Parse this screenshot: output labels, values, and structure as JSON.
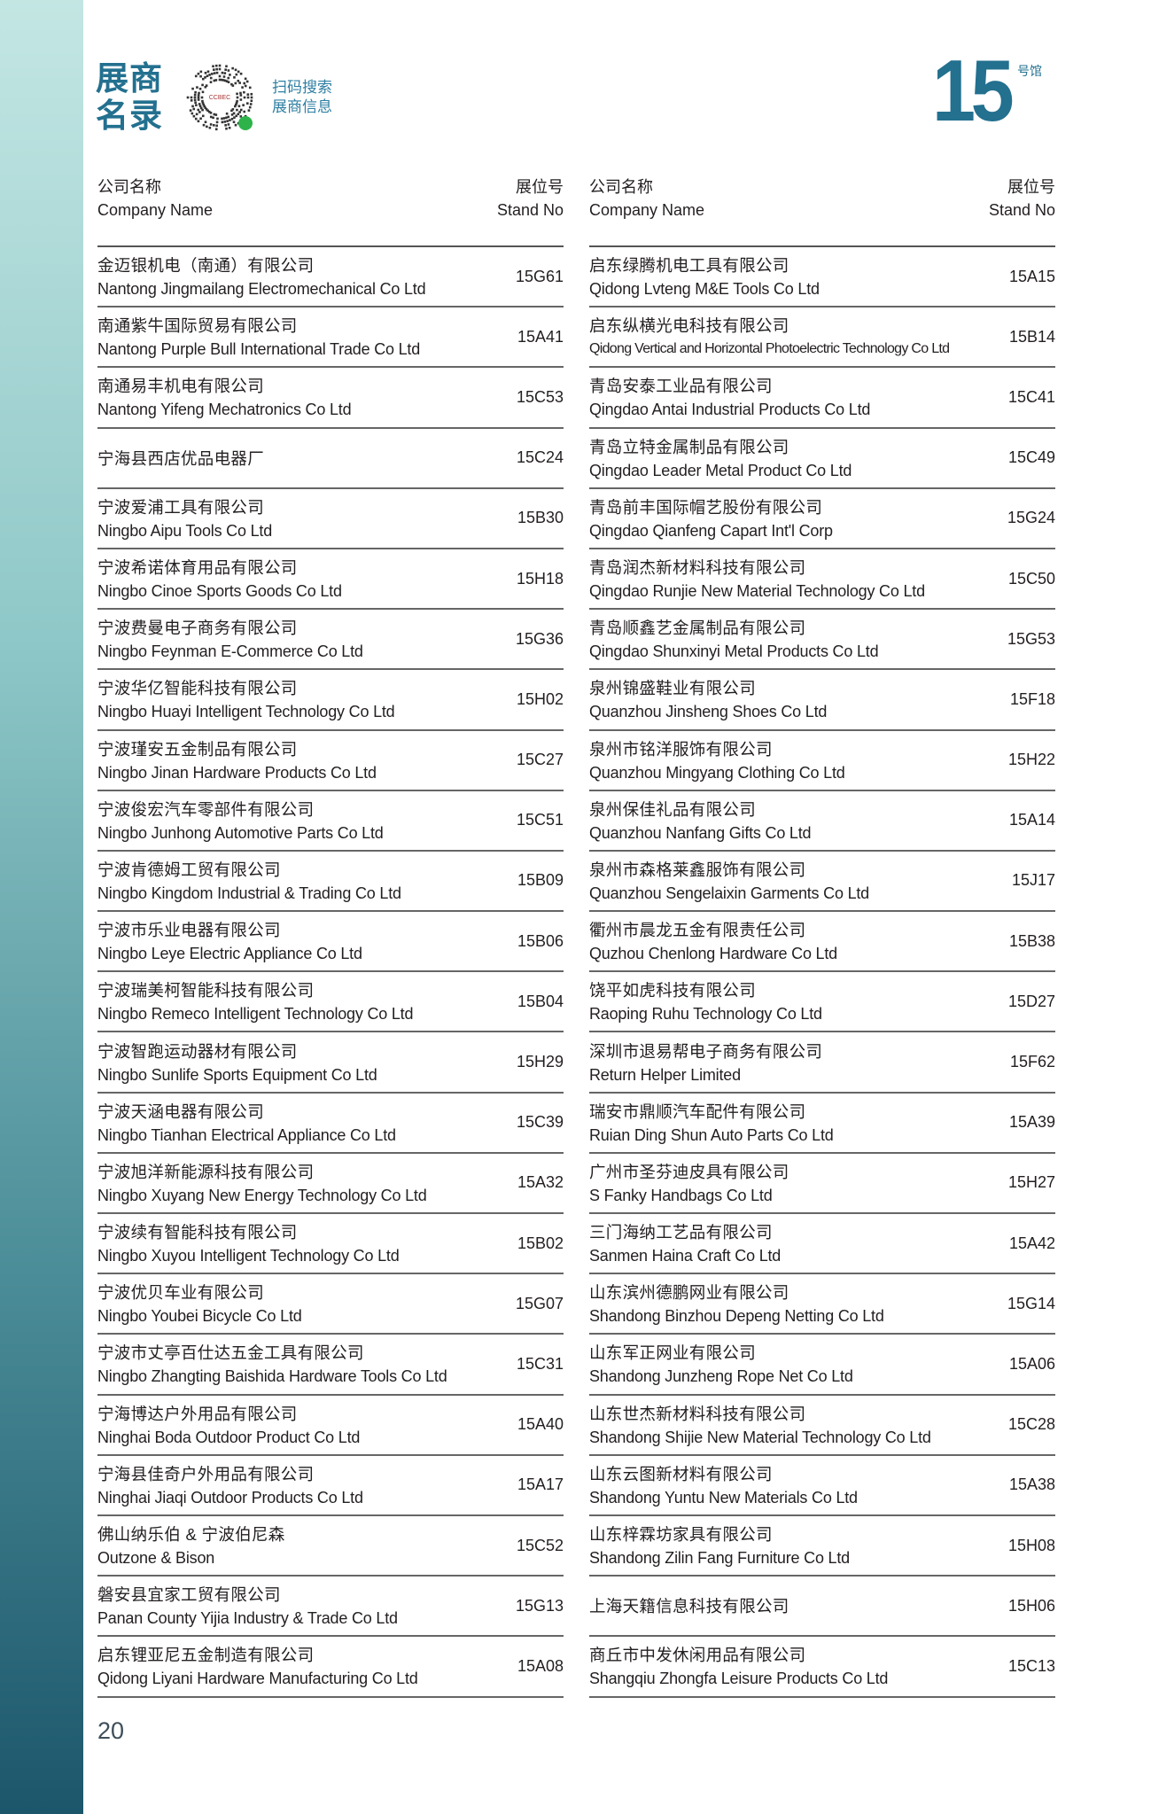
{
  "header": {
    "title_line1": "展商",
    "title_line2": "名录",
    "scan_line1": "扫码搜索",
    "scan_line2": "展商信息",
    "qr_logo_text": "CCBEC",
    "hall_number": "15",
    "hall_label": "号馆"
  },
  "columns_header": {
    "name_cn": "公司名称",
    "name_en": "Company Name",
    "stand_cn": "展位号",
    "stand_en": "Stand No"
  },
  "left": [
    {
      "cn": "金迈银机电（南通）有限公司",
      "en": "Nantong Jingmailang Electromechanical Co Ltd",
      "stand": "15G61"
    },
    {
      "cn": "南通紫牛国际贸易有限公司",
      "en": "Nantong Purple Bull International Trade Co Ltd",
      "stand": "15A41"
    },
    {
      "cn": "南通易丰机电有限公司",
      "en": "Nantong Yifeng Mechatronics Co Ltd",
      "stand": "15C53"
    },
    {
      "cn": "宁海县西店优品电器厂",
      "en": "",
      "stand": "15C24"
    },
    {
      "cn": "宁波爱浦工具有限公司",
      "en": "Ningbo Aipu Tools Co Ltd",
      "stand": "15B30"
    },
    {
      "cn": "宁波希诺体育用品有限公司",
      "en": "Ningbo Cinoe Sports Goods Co Ltd",
      "stand": "15H18"
    },
    {
      "cn": "宁波费曼电子商务有限公司",
      "en": "Ningbo Feynman E-Commerce Co Ltd",
      "stand": "15G36"
    },
    {
      "cn": "宁波华亿智能科技有限公司",
      "en": "Ningbo Huayi Intelligent Technology Co Ltd",
      "stand": "15H02"
    },
    {
      "cn": "宁波瑾安五金制品有限公司",
      "en": "Ningbo Jinan Hardware Products Co Ltd",
      "stand": "15C27"
    },
    {
      "cn": "宁波俊宏汽车零部件有限公司",
      "en": "Ningbo Junhong Automotive Parts Co Ltd",
      "stand": "15C51"
    },
    {
      "cn": "宁波肯德姆工贸有限公司",
      "en": "Ningbo Kingdom Industrial & Trading Co Ltd",
      "stand": "15B09"
    },
    {
      "cn": "宁波市乐业电器有限公司",
      "en": "Ningbo Leye Electric Appliance Co Ltd",
      "stand": "15B06"
    },
    {
      "cn": "宁波瑞美柯智能科技有限公司",
      "en": "Ningbo Remeco Intelligent Technology Co Ltd",
      "stand": "15B04"
    },
    {
      "cn": "宁波智跑运动器材有限公司",
      "en": "Ningbo Sunlife Sports Equipment Co Ltd",
      "stand": "15H29"
    },
    {
      "cn": "宁波天涵电器有限公司",
      "en": "Ningbo Tianhan Electrical Appliance Co Ltd",
      "stand": "15C39"
    },
    {
      "cn": "宁波旭洋新能源科技有限公司",
      "en": "Ningbo Xuyang New Energy Technology Co Ltd",
      "stand": "15A32"
    },
    {
      "cn": "宁波续有智能科技有限公司",
      "en": "Ningbo Xuyou Intelligent Technology Co Ltd",
      "stand": "15B02"
    },
    {
      "cn": "宁波优贝车业有限公司",
      "en": "Ningbo Youbei Bicycle Co Ltd",
      "stand": "15G07"
    },
    {
      "cn": "宁波市丈亭百仕达五金工具有限公司",
      "en": "Ningbo Zhangting Baishida Hardware Tools Co Ltd",
      "stand": "15C31"
    },
    {
      "cn": "宁海博达户外用品有限公司",
      "en": "Ninghai Boda Outdoor Product Co Ltd",
      "stand": "15A40"
    },
    {
      "cn": "宁海县佳奇户外用品有限公司",
      "en": "Ninghai Jiaqi Outdoor Products Co Ltd",
      "stand": "15A17"
    },
    {
      "cn": "佛山纳乐伯 & 宁波伯尼森",
      "en": "Outzone & Bison",
      "stand": "15C52"
    },
    {
      "cn": "磐安县宜家工贸有限公司",
      "en": "Panan County Yijia Industry & Trade Co Ltd",
      "stand": "15G13"
    },
    {
      "cn": "启东锂亚尼五金制造有限公司",
      "en": "Qidong Liyani Hardware Manufacturing Co Ltd",
      "stand": "15A08"
    }
  ],
  "right": [
    {
      "cn": "启东绿腾机电工具有限公司",
      "en": "Qidong Lvteng M&E Tools Co Ltd",
      "stand": "15A15"
    },
    {
      "cn": "启东纵横光电科技有限公司",
      "en": "Qidong Vertical and Horizontal Photoelectric Technology Co Ltd",
      "stand": "15B14"
    },
    {
      "cn": "青岛安泰工业品有限公司",
      "en": "Qingdao Antai Industrial Products Co Ltd",
      "stand": "15C41"
    },
    {
      "cn": "青岛立特金属制品有限公司",
      "en": "Qingdao Leader Metal Product Co Ltd",
      "stand": "15C49"
    },
    {
      "cn": "青岛前丰国际帽艺股份有限公司",
      "en": "Qingdao Qianfeng Capart Int'l Corp",
      "stand": "15G24"
    },
    {
      "cn": "青岛润杰新材料科技有限公司",
      "en": "Qingdao Runjie New Material Technology Co Ltd",
      "stand": "15C50"
    },
    {
      "cn": "青岛顺鑫艺金属制品有限公司",
      "en": "Qingdao Shunxinyi Metal Products Co Ltd",
      "stand": "15G53"
    },
    {
      "cn": "泉州锦盛鞋业有限公司",
      "en": "Quanzhou Jinsheng Shoes Co Ltd",
      "stand": "15F18"
    },
    {
      "cn": "泉州市铭洋服饰有限公司",
      "en": "Quanzhou Mingyang Clothing Co Ltd",
      "stand": "15H22"
    },
    {
      "cn": "泉州保佳礼品有限公司",
      "en": "Quanzhou Nanfang Gifts Co Ltd",
      "stand": "15A14"
    },
    {
      "cn": "泉州市森格莱鑫服饰有限公司",
      "en": "Quanzhou Sengelaixin Garments Co Ltd",
      "stand": "15J17"
    },
    {
      "cn": "衢州市晨龙五金有限责任公司",
      "en": "Quzhou Chenlong Hardware Co Ltd",
      "stand": "15B38"
    },
    {
      "cn": "饶平如虎科技有限公司",
      "en": "Raoping Ruhu Technology Co Ltd",
      "stand": "15D27"
    },
    {
      "cn": "深圳市退易帮电子商务有限公司",
      "en": "Return Helper Limited",
      "stand": "15F62"
    },
    {
      "cn": "瑞安市鼎顺汽车配件有限公司",
      "en": "Ruian Ding Shun Auto Parts Co Ltd",
      "stand": "15A39"
    },
    {
      "cn": "广州市圣芬迪皮具有限公司",
      "en": "S Fanky Handbags Co Ltd",
      "stand": "15H27"
    },
    {
      "cn": "三门海纳工艺品有限公司",
      "en": "Sanmen Haina Craft Co Ltd",
      "stand": "15A42"
    },
    {
      "cn": "山东滨州德鹏网业有限公司",
      "en": "Shandong Binzhou Depeng Netting Co Ltd",
      "stand": "15G14"
    },
    {
      "cn": "山东军正网业有限公司",
      "en": "Shandong Junzheng Rope Net Co Ltd",
      "stand": "15A06"
    },
    {
      "cn": "山东世杰新材料科技有限公司",
      "en": "Shandong Shijie New Material Technology Co Ltd",
      "stand": "15C28"
    },
    {
      "cn": "山东云图新材料有限公司",
      "en": "Shandong Yuntu New Materials Co Ltd",
      "stand": "15A38"
    },
    {
      "cn": "山东梓霖坊家具有限公司",
      "en": "Shandong Zilin Fang Furniture Co Ltd",
      "stand": "15H08"
    },
    {
      "cn": "上海天籍信息科技有限公司",
      "en": "",
      "stand": "15H06"
    },
    {
      "cn": "商丘市中发休闲用品有限公司",
      "en": "Shangqiu Zhongfa Leisure Products Co Ltd",
      "stand": "15C13"
    }
  ],
  "page_number": "20",
  "colors": {
    "accent": "#23708f",
    "band_top": "#c3e6e3",
    "band_bottom": "#1c566b"
  }
}
